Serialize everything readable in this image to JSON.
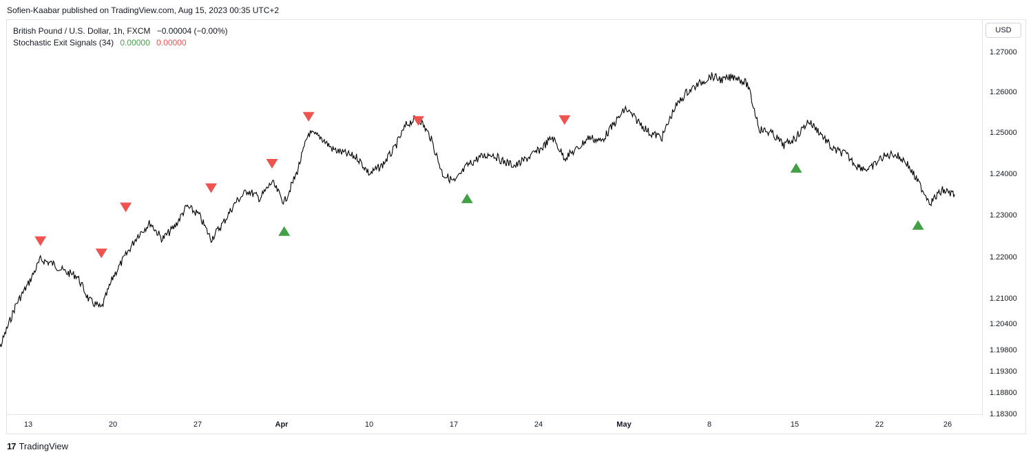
{
  "header": {
    "published": "Sofien-Kaabar published on TradingView.com, Aug 15, 2023 00:35 UTC+2"
  },
  "legend": {
    "symbol": "British Pound / U.S. Dollar, 1h, FXCM",
    "change": "−0.00004 (−0.00%)",
    "indicator_name": "Stochastic Exit Signals (34)",
    "value_bull": "0.00000",
    "value_bear": "0.00000"
  },
  "currency_button": "USD",
  "brand": {
    "logo_text": "17",
    "name": "TradingView"
  },
  "colors": {
    "bull": "#43a047",
    "bear": "#ef5350",
    "price": "#000000",
    "grid": "#e0e3eb"
  },
  "chart_data": {
    "type": "line",
    "price_ticks": [
      "1.27000",
      "1.26000",
      "1.25000",
      "1.24000",
      "1.23000",
      "1.22000",
      "1.21000",
      "1.20400",
      "1.19800",
      "1.19300",
      "1.18800",
      "1.18300"
    ],
    "date_ticks": [
      {
        "label": "13",
        "bold": false
      },
      {
        "label": "20",
        "bold": false
      },
      {
        "label": "27",
        "bold": false
      },
      {
        "label": "Apr",
        "bold": true
      },
      {
        "label": "10",
        "bold": false
      },
      {
        "label": "17",
        "bold": false
      },
      {
        "label": "24",
        "bold": false
      },
      {
        "label": "May",
        "bold": true
      },
      {
        "label": "8",
        "bold": false
      },
      {
        "label": "15",
        "bold": false
      },
      {
        "label": "22",
        "bold": false
      },
      {
        "label": "26",
        "bold": false
      }
    ],
    "series": [
      {
        "values": [
          [
            "2023-03-10",
            1.192
          ],
          [
            "2023-03-11",
            1.2
          ],
          [
            "2023-03-12",
            1.208
          ],
          [
            "2023-03-13",
            1.213
          ],
          [
            "2023-03-14",
            1.219
          ],
          [
            "2023-03-15",
            1.218
          ],
          [
            "2023-03-16",
            1.216
          ],
          [
            "2023-03-17",
            1.215
          ],
          [
            "2023-03-18",
            1.209
          ],
          [
            "2023-03-19",
            1.207
          ],
          [
            "2023-03-20",
            1.215
          ],
          [
            "2023-03-21",
            1.22
          ],
          [
            "2023-03-22",
            1.225
          ],
          [
            "2023-03-23",
            1.228
          ],
          [
            "2023-03-24",
            1.224
          ],
          [
            "2023-03-25",
            1.227
          ],
          [
            "2023-03-26",
            1.232
          ],
          [
            "2023-03-27",
            1.23
          ],
          [
            "2023-03-28",
            1.224
          ],
          [
            "2023-03-29",
            1.228
          ],
          [
            "2023-03-30",
            1.233
          ],
          [
            "2023-03-31",
            1.236
          ],
          [
            "2023-04-01",
            1.234
          ],
          [
            "2023-04-02",
            1.238
          ],
          [
            "2023-04-03",
            1.233
          ],
          [
            "2023-04-04",
            1.24
          ],
          [
            "2023-04-05",
            1.25
          ],
          [
            "2023-04-06",
            1.249
          ],
          [
            "2023-04-07",
            1.246
          ],
          [
            "2023-04-08",
            1.245
          ],
          [
            "2023-04-09",
            1.244
          ],
          [
            "2023-04-10",
            1.24
          ],
          [
            "2023-04-11",
            1.242
          ],
          [
            "2023-04-12",
            1.246
          ],
          [
            "2023-04-13",
            1.252
          ],
          [
            "2023-04-14",
            1.254
          ],
          [
            "2023-04-15",
            1.249
          ],
          [
            "2023-04-16",
            1.24
          ],
          [
            "2023-04-17",
            1.238
          ],
          [
            "2023-04-18",
            1.242
          ],
          [
            "2023-04-19",
            1.244
          ],
          [
            "2023-04-20",
            1.245
          ],
          [
            "2023-04-21",
            1.243
          ],
          [
            "2023-04-22",
            1.242
          ],
          [
            "2023-04-23",
            1.244
          ],
          [
            "2023-04-24",
            1.246
          ],
          [
            "2023-04-25",
            1.249
          ],
          [
            "2023-04-26",
            1.244
          ],
          [
            "2023-04-27",
            1.246
          ],
          [
            "2023-04-28",
            1.249
          ],
          [
            "2023-04-29",
            1.248
          ],
          [
            "2023-04-30",
            1.252
          ],
          [
            "2023-05-01",
            1.256
          ],
          [
            "2023-05-02",
            1.253
          ],
          [
            "2023-05-03",
            1.25
          ],
          [
            "2023-05-04",
            1.249
          ],
          [
            "2023-05-05",
            1.256
          ],
          [
            "2023-05-06",
            1.26
          ],
          [
            "2023-05-07",
            1.262
          ],
          [
            "2023-05-08",
            1.264
          ],
          [
            "2023-05-09",
            1.263
          ],
          [
            "2023-05-10",
            1.264
          ],
          [
            "2023-05-11",
            1.262
          ],
          [
            "2023-05-12",
            1.251
          ],
          [
            "2023-05-13",
            1.25
          ],
          [
            "2023-05-14",
            1.247
          ],
          [
            "2023-05-15",
            1.249
          ],
          [
            "2023-05-16",
            1.253
          ],
          [
            "2023-05-17",
            1.25
          ],
          [
            "2023-05-18",
            1.246
          ],
          [
            "2023-05-19",
            1.245
          ],
          [
            "2023-05-20",
            1.242
          ],
          [
            "2023-05-21",
            1.241
          ],
          [
            "2023-05-22",
            1.244
          ],
          [
            "2023-05-23",
            1.245
          ],
          [
            "2023-05-24",
            1.243
          ],
          [
            "2023-05-25",
            1.238
          ],
          [
            "2023-05-26",
            1.233
          ],
          [
            "2023-05-27",
            1.236
          ],
          [
            "2023-05-28",
            1.235
          ]
        ]
      }
    ],
    "signals": [
      {
        "date": "2023-03-14",
        "price": 1.2235,
        "kind": "bear"
      },
      {
        "date": "2023-03-19",
        "price": 1.2205,
        "kind": "bear"
      },
      {
        "date": "2023-03-21",
        "price": 1.2318,
        "kind": "bear"
      },
      {
        "date": "2023-03-28",
        "price": 1.2365,
        "kind": "bear"
      },
      {
        "date": "2023-04-02",
        "price": 1.2425,
        "kind": "bear"
      },
      {
        "date": "2023-04-03",
        "price": 1.226,
        "kind": "bull"
      },
      {
        "date": "2023-04-05",
        "price": 1.254,
        "kind": "bear"
      },
      {
        "date": "2023-04-14",
        "price": 1.253,
        "kind": "bear"
      },
      {
        "date": "2023-04-18",
        "price": 1.234,
        "kind": "bull"
      },
      {
        "date": "2023-04-26",
        "price": 1.2532,
        "kind": "bear"
      },
      {
        "date": "2023-05-15",
        "price": 1.2415,
        "kind": "bull"
      },
      {
        "date": "2023-05-25",
        "price": 1.2275,
        "kind": "bull"
      }
    ]
  }
}
